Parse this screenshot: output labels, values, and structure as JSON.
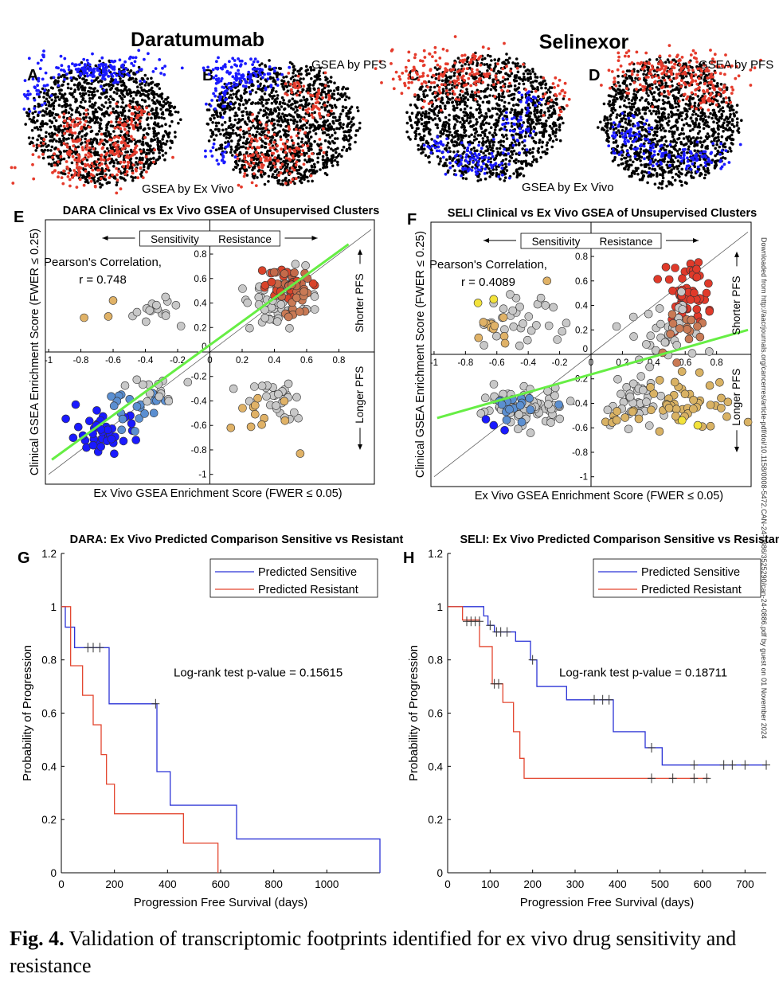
{
  "headers": {
    "dara": "Daratumumab",
    "seli": "Selinexor"
  },
  "panel_letters": [
    "A",
    "B",
    "C",
    "D",
    "E",
    "F",
    "G",
    "H"
  ],
  "tsne_labels": {
    "gsea_pfs": "GSEA by PFS",
    "gsea_exvivo": "GSEA by Ex Vivo"
  },
  "scatter_common": {
    "sensitivity": "Sensitivity",
    "resistance": "Resistance",
    "shorter_pfs": "Shorter PFS",
    "longer_pfs": "Longer PFS",
    "ylabel": "Clinical GSEA Enrichment Score (FWER ≤ 0.25)",
    "xlabel": "Ex Vivo GSEA Enrichment Score (FWER ≤ 0.05)",
    "pearson": "Pearson's Correlation,"
  },
  "km_common": {
    "ylabel": "Probability of Progression",
    "xlabel": "Progression Free Survival (days)",
    "legend": [
      "Predicted Sensitive",
      "Predicted Resistant"
    ]
  },
  "colors": {
    "blue": "#1a1aff",
    "red": "#e53b2c",
    "green": "#66ee44",
    "km_blue": "#2b33d6",
    "km_red": "#e3462f"
  },
  "chart_data": [
    {
      "panel": "E",
      "type": "scatter",
      "title": "DARA Clinical vs Ex Vivo GSEA of Unsupervised Clusters",
      "xlabel": "Ex Vivo GSEA Enrichment Score (FWER ≤ 0.05)",
      "ylabel": "Clinical GSEA Enrichment Score (FWER ≤ 0.25)",
      "xlim": [
        -1,
        1
      ],
      "ylim": [
        -1,
        1
      ],
      "x_ticks": [
        -1,
        -0.8,
        -0.6,
        -0.4,
        -0.2,
        0,
        0.2,
        0.4,
        0.6,
        0.8
      ],
      "y_ticks": [
        -1,
        -0.8,
        -0.6,
        -0.4,
        -0.2,
        0,
        0.2,
        0.4,
        0.6,
        0.8
      ],
      "pearson_r": "r = 0.748",
      "fit_line": {
        "x": [
          -0.98,
          0.86
        ],
        "y": [
          -0.88,
          0.88
        ]
      }
    },
    {
      "panel": "F",
      "type": "scatter",
      "title": "SELI Clinical vs Ex Vivo GSEA of Unsupervised Clusters",
      "xlabel": "Ex Vivo GSEA Enrichment Score (FWER ≤ 0.05)",
      "ylabel": "Clinical GSEA Enrichment Score (FWER ≤ 0.25)",
      "xlim": [
        -1,
        1
      ],
      "ylim": [
        -1,
        1
      ],
      "x_ticks": [
        -1,
        -0.8,
        -0.6,
        -0.4,
        -0.2,
        0,
        0.2,
        0.4,
        0.6,
        0.8
      ],
      "y_ticks": [
        -1,
        -0.8,
        -0.6,
        -0.4,
        -0.2,
        0,
        0.2,
        0.4,
        0.6,
        0.8
      ],
      "pearson_r": "r = 0.4089",
      "fit_line": {
        "x": [
          -0.98,
          1.0
        ],
        "y": [
          -0.52,
          0.2
        ]
      }
    },
    {
      "panel": "G",
      "type": "line",
      "title": "DARA: Ex Vivo Predicted Comparison Sensitive vs Resistant",
      "xlabel": "Progression Free Survival (days)",
      "ylabel": "Probability of Progression",
      "xlim": [
        0,
        1200
      ],
      "ylim": [
        0,
        1.2
      ],
      "x_ticks": [
        0,
        200,
        400,
        600,
        800,
        1000
      ],
      "y_ticks": [
        0,
        0.2,
        0.4,
        0.6,
        0.8,
        1,
        1.2
      ],
      "annotation": "Log-rank test p-value = 0.15615",
      "series": [
        {
          "name": "Predicted Sensitive",
          "x": [
            0,
            15,
            50,
            180,
            360,
            410,
            660,
            1200
          ],
          "y": [
            1,
            0.923,
            0.846,
            0.635,
            0.38,
            0.254,
            0.127,
            0
          ],
          "censor_x": [
            100,
            120,
            145,
            355
          ],
          "censor_y": [
            0.846,
            0.846,
            0.846,
            0.635
          ]
        },
        {
          "name": "Predicted Resistant",
          "x": [
            0,
            35,
            80,
            120,
            150,
            170,
            200,
            460,
            590
          ],
          "y": [
            1,
            0.778,
            0.667,
            0.556,
            0.444,
            0.333,
            0.222,
            0.111,
            0
          ],
          "censor_x": [],
          "censor_y": []
        }
      ]
    },
    {
      "panel": "H",
      "type": "line",
      "title": "SELI: Ex Vivo Predicted Comparison Sensitive vs Resistant",
      "xlabel": "Progression Free Survival (days)",
      "ylabel": "Probability of Progression",
      "xlim": [
        0,
        750
      ],
      "ylim": [
        0,
        1.2
      ],
      "x_ticks": [
        0,
        100,
        200,
        300,
        400,
        500,
        600,
        700
      ],
      "y_ticks": [
        0,
        0.2,
        0.4,
        0.6,
        0.8,
        1,
        1.2
      ],
      "annotation": "Log-rank test p-value = 0.18711",
      "series": [
        {
          "name": "Predicted Sensitive",
          "x": [
            0,
            85,
            95,
            110,
            160,
            195,
            210,
            280,
            390,
            465,
            505,
            750
          ],
          "y": [
            1,
            0.965,
            0.93,
            0.905,
            0.87,
            0.8,
            0.7,
            0.65,
            0.53,
            0.47,
            0.405,
            0.405
          ],
          "censor_x": [
            100,
            115,
            125,
            140,
            200,
            345,
            365,
            380,
            480,
            580,
            650,
            670,
            700,
            750
          ],
          "censor_y": [
            0.93,
            0.905,
            0.905,
            0.905,
            0.8,
            0.65,
            0.65,
            0.65,
            0.47,
            0.405,
            0.405,
            0.405,
            0.405,
            0.405
          ]
        },
        {
          "name": "Predicted Resistant",
          "x": [
            0,
            35,
            75,
            105,
            130,
            155,
            170,
            180,
            615
          ],
          "y": [
            1,
            0.95,
            0.85,
            0.71,
            0.64,
            0.53,
            0.43,
            0.355,
            0.355
          ],
          "censor_x": [
            45,
            55,
            65,
            75,
            110,
            120,
            480,
            530,
            580,
            610
          ],
          "censor_y": [
            0.945,
            0.945,
            0.945,
            0.945,
            0.71,
            0.71,
            0.355,
            0.355,
            0.355,
            0.355
          ]
        }
      ]
    }
  ],
  "caption": {
    "label": "Fig. 4.",
    "text": " Validation of transcriptomic footprints identified for ex vivo drug sensitivity and resistance"
  },
  "watermark": "Downloaded from http://aacrjournals.org/cancerres/article-pdf/doi/10.1158/0008-5472.CAN-24-0886/3525290/can-24-0886.pdf by guest on 01 November 2024"
}
